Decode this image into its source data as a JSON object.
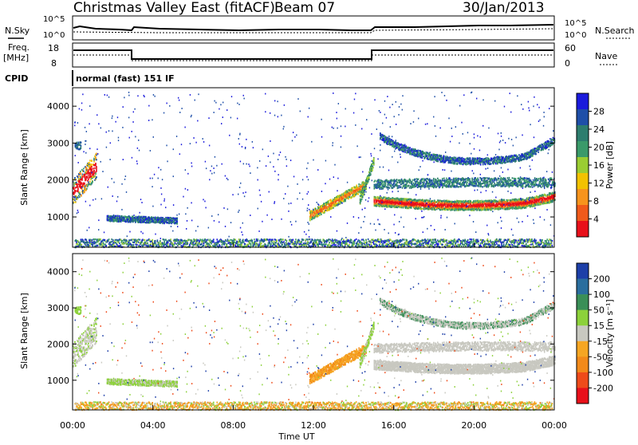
{
  "header": {
    "title": "Christmas Valley East (fitACF)",
    "beam": "Beam 07",
    "date": "30/Jan/2013"
  },
  "panels": {
    "nsky_label": "N.Sky",
    "nsearch_label": "N.Search",
    "freq_label_line1": "Freq.",
    "freq_label_line2": "[MHz]",
    "nave_label": "Nave",
    "cpid_label": "CPID",
    "cpid_text": "normal (fast) 151 IF",
    "nsky_ticks": [
      "10^5",
      "10^0"
    ],
    "nsearch_ticks": [
      "10^5",
      "10^0"
    ],
    "freq_ticks": [
      "18",
      "8"
    ],
    "nave_ticks": [
      "60",
      "0"
    ]
  },
  "colors": {
    "power_scale": [
      "#1a1adc",
      "#1e4fa8",
      "#2d7d6e",
      "#3a9a6a",
      "#9acd32",
      "#f2c200",
      "#f7941d",
      "#f05a1a",
      "#e8101a"
    ],
    "velocity_scale": [
      "#1d3fa8",
      "#2a6e9e",
      "#3a8f57",
      "#8cd13a",
      "#c8c8c0",
      "#f5a623",
      "#f28a1a",
      "#ee4b1a",
      "#e8101a"
    ]
  },
  "chart_data": [
    {
      "type": "heatmap",
      "name": "power",
      "xlabel": "",
      "ylabel": "Slant Range [km]",
      "ylim": [
        180,
        4500
      ],
      "xlim": [
        0,
        24
      ],
      "yticks": [
        1000,
        2000,
        3000,
        4000
      ],
      "colorbar_label": "Power [dB]",
      "colorbar_ticks": [
        "4",
        "8",
        "12",
        "16",
        "20",
        "24",
        "28"
      ]
    },
    {
      "type": "heatmap",
      "name": "velocity",
      "xlabel": "Time UT",
      "ylabel": "Slant Range [km]",
      "ylim": [
        180,
        4500
      ],
      "xlim": [
        0,
        24
      ],
      "yticks": [
        1000,
        2000,
        3000,
        4000
      ],
      "xticks": [
        "00:00",
        "04:00",
        "08:00",
        "12:00",
        "16:00",
        "20:00",
        "00:00"
      ],
      "colorbar_label": "Velocity [m s⁻¹]",
      "colorbar_ticks": [
        "200",
        "100",
        "50",
        "15",
        "-15",
        "-50",
        "-100",
        "-200"
      ]
    }
  ]
}
